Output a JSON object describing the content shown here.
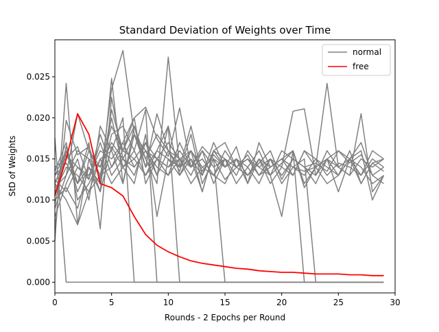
{
  "chart_data": {
    "type": "line",
    "title": "Standard Deviation of Weights over Time",
    "xlabel": "Rounds - 2 Epochs per Round",
    "ylabel": "StD of Weights",
    "xlim": [
      0,
      30
    ],
    "ylim": [
      -0.0013,
      0.0295
    ],
    "xticks": [
      0,
      5,
      10,
      15,
      20,
      25,
      30
    ],
    "xtick_labels": [
      "0",
      "5",
      "10",
      "15",
      "20",
      "25",
      "30"
    ],
    "yticks": [
      0.0,
      0.005,
      0.01,
      0.015,
      0.02,
      0.025
    ],
    "ytick_labels": [
      "0.000",
      "0.005",
      "0.010",
      "0.015",
      "0.020",
      "0.025"
    ],
    "grid": false,
    "legend": {
      "position": "top-right",
      "entries": [
        {
          "label": "normal",
          "color": "#808080"
        },
        {
          "label": "free",
          "color": "#ff0000"
        }
      ]
    },
    "x": [
      0,
      1,
      2,
      3,
      4,
      5,
      6,
      7,
      8,
      9,
      10,
      11,
      12,
      13,
      14,
      15,
      16,
      17,
      18,
      19,
      20,
      21,
      22,
      23,
      24,
      25,
      26,
      27,
      28,
      29
    ],
    "series": [
      {
        "color": "#808080",
        "values": [
          0.0175,
          0.0,
          0.0,
          0.0,
          0.0,
          0.0,
          0.0,
          0.0,
          0.0,
          0.0,
          0.0,
          0.0,
          0.0,
          0.0,
          0.0,
          0.0,
          0.0,
          0.0,
          0.0,
          0.0,
          0.0,
          0.0,
          0.0,
          0.0,
          0.0,
          0.0,
          0.0,
          0.0,
          0.0,
          0.0
        ]
      },
      {
        "color": "#808080",
        "values": [
          0.005,
          0.0242,
          0.007,
          0.015,
          0.011,
          0.0248,
          0.012,
          0.019,
          0.014,
          0.0205,
          0.016,
          0.0135,
          0.018,
          0.012,
          0.015,
          0.014,
          0.0165,
          0.012,
          0.015,
          0.013,
          0.0145,
          0.016,
          0.0115,
          0.014,
          0.015,
          0.013,
          0.016,
          0.012,
          0.0145,
          0.015
        ]
      },
      {
        "color": "#808080",
        "values": [
          0.0065,
          0.0197,
          0.0155,
          0.0165,
          0.0125,
          0.0235,
          0.0282,
          0.018,
          0.015,
          0.012,
          0.0274,
          0.014,
          0.016,
          0.0135,
          0.0155,
          0.014,
          0.015,
          0.013,
          0.0145,
          0.016,
          0.0125,
          0.015,
          0.014,
          0.0145,
          0.0135,
          0.016,
          0.0145,
          0.0155,
          0.013,
          0.014
        ]
      },
      {
        "color": "#808080",
        "values": [
          0.009,
          0.013,
          0.0205,
          0.016,
          0.014,
          0.019,
          0.016,
          0.02,
          0.0213,
          0.0175,
          0.0153,
          0.0212,
          0.014,
          0.0165,
          0.015,
          0.0125,
          0.014,
          0.0155,
          0.013,
          0.015,
          0.014,
          0.0208,
          0.0211,
          0.013,
          0.015,
          0.014,
          0.013,
          0.0205,
          0.011,
          0.013
        ]
      },
      {
        "color": "#808080",
        "values": [
          0.01,
          0.0115,
          0.009,
          0.014,
          0.012,
          0.021,
          0.016,
          0.019,
          0.015,
          0.018,
          0.016,
          0.014,
          0.019,
          0.013,
          0.017,
          0.014,
          0.015,
          0.012,
          0.017,
          0.014,
          0.015,
          0.013,
          0.016,
          0.014,
          0.0242,
          0.014,
          0.013,
          0.015,
          0.014,
          0.015
        ]
      },
      {
        "color": "#808080",
        "values": [
          0.012,
          0.01,
          0.007,
          0.011,
          0.013,
          0.02,
          0.014,
          0.015,
          0.017,
          0.013,
          0.016,
          0.015,
          0.012,
          0.014,
          0.013,
          0.016,
          0.014,
          0.015,
          0.014,
          0.013,
          0.016,
          0.015,
          0.014,
          0.012,
          0.015,
          0.016,
          0.015,
          0.017,
          0.013,
          0.012
        ]
      },
      {
        "color": "#808080",
        "values": [
          0.0135,
          0.017,
          0.01,
          0.012,
          0.015,
          0.016,
          0.012,
          0.018,
          0.014,
          0.016,
          0.019,
          0.013,
          0.015,
          0.011,
          0.016,
          0.017,
          0.014,
          0.013,
          0.015,
          0.012,
          0.014,
          0.013,
          0.016,
          0.015,
          0.013,
          0.0145,
          0.014,
          0.013,
          0.015,
          0.014
        ]
      },
      {
        "color": "#808080",
        "values": [
          0.014,
          0.015,
          0.0165,
          0.0125,
          0.018,
          0.014,
          0.017,
          0.02,
          0.012,
          0.015,
          0.013,
          0.017,
          0.014,
          0.016,
          0.012,
          0.015,
          0.014,
          0.015,
          0.013,
          0.014,
          0.015,
          0.014,
          0.013,
          0.015,
          0.014,
          0.013,
          0.015,
          0.014,
          0.012,
          0.013
        ]
      },
      {
        "color": "#808080",
        "values": [
          0.0105,
          0.0165,
          0.012,
          0.017,
          0.0065,
          0.0225,
          0.015,
          0.013,
          0.017,
          0.015,
          0.017,
          0.015,
          0.013,
          0.016,
          0.014,
          0.015,
          0.013,
          0.016,
          0.014,
          0.015,
          0.013,
          0.015,
          0.014,
          0.013,
          0.016,
          0.014,
          0.015,
          0.013,
          0.016,
          0.015
        ]
      },
      {
        "color": "#808080",
        "values": [
          0.011,
          0.014,
          0.013,
          0.011,
          0.015,
          0.012,
          0.014,
          0.016,
          0.013,
          0.015,
          0.014,
          0.016,
          0.014,
          0.015,
          0.013,
          0.012,
          0.015,
          0.014,
          0.012,
          0.015,
          0.012,
          0.014,
          0.0135,
          0.014,
          0.012,
          0.013,
          0.015,
          0.012,
          0.0145,
          0.0135
        ]
      },
      {
        "color": "#808080",
        "values": [
          0.008,
          0.012,
          0.015,
          0.01,
          0.019,
          0.016,
          0.02,
          0.0,
          0.0,
          0.0,
          0.0,
          0.0,
          0.0,
          0.0,
          0.0,
          0.0,
          0.0,
          0.0,
          0.0,
          0.0,
          0.0,
          0.0,
          0.0,
          0.0,
          0.0,
          0.0,
          0.0,
          0.0,
          0.0,
          0.0
        ]
      },
      {
        "color": "#808080",
        "values": [
          0.0095,
          0.016,
          0.011,
          0.014,
          0.012,
          0.018,
          0.019,
          0.016,
          0.021,
          0.0,
          0.0,
          0.0,
          0.0,
          0.0,
          0.0,
          0.0,
          0.0,
          0.0,
          0.0,
          0.0,
          0.0,
          0.0,
          0.0,
          0.0,
          0.0,
          0.0,
          0.0,
          0.0,
          0.0,
          0.0
        ]
      },
      {
        "color": "#808080",
        "values": [
          0.0115,
          0.013,
          0.016,
          0.015,
          0.014,
          0.017,
          0.015,
          0.018,
          0.016,
          0.013,
          0.019,
          0.0,
          0.0,
          0.0,
          0.0,
          0.0,
          0.0,
          0.0,
          0.0,
          0.0,
          0.0,
          0.0,
          0.0,
          0.0,
          0.0,
          0.0,
          0.0,
          0.0,
          0.0,
          0.0
        ]
      },
      {
        "color": "#808080",
        "values": [
          0.0125,
          0.011,
          0.014,
          0.013,
          0.016,
          0.015,
          0.017,
          0.014,
          0.016,
          0.015,
          0.014,
          0.015,
          0.016,
          0.014,
          0.015,
          0.0,
          0.0,
          0.0,
          0.0,
          0.0,
          0.0,
          0.0,
          0.0,
          0.0,
          0.0,
          0.0,
          0.0,
          0.0,
          0.0,
          0.0
        ]
      },
      {
        "color": "#808080",
        "values": [
          0.013,
          0.0145,
          0.012,
          0.016,
          0.013,
          0.014,
          0.016,
          0.015,
          0.013,
          0.016,
          0.015,
          0.014,
          0.015,
          0.013,
          0.016,
          0.014,
          0.015,
          0.013,
          0.015,
          0.014,
          0.015,
          0.016,
          0.0,
          0.0,
          0.0,
          0.0,
          0.0,
          0.0,
          0.0,
          0.0
        ]
      },
      {
        "color": "#808080",
        "values": [
          0.012,
          0.0155,
          0.014,
          0.0125,
          0.017,
          0.013,
          0.015,
          0.014,
          0.016,
          0.014,
          0.013,
          0.015,
          0.014,
          0.015,
          0.013,
          0.015,
          0.014,
          0.015,
          0.013,
          0.014,
          0.015,
          0.014,
          0.015,
          0.0,
          0.0,
          0.0,
          0.0,
          0.0,
          0.0,
          0.0
        ]
      },
      {
        "color": "#808080",
        "values": [
          0.013,
          0.016,
          0.012,
          0.014,
          0.011,
          0.0165,
          0.014,
          0.012,
          0.018,
          0.008,
          0.015,
          0.013,
          0.016,
          0.011,
          0.016,
          0.015,
          0.012,
          0.014,
          0.016,
          0.013,
          0.008,
          0.016,
          0.012,
          0.014,
          0.015,
          0.011,
          0.015,
          0.016,
          0.01,
          0.013
        ]
      },
      {
        "color": "#ff0000",
        "values": [
          0.0105,
          0.015,
          0.0205,
          0.018,
          0.012,
          0.0115,
          0.0105,
          0.008,
          0.0058,
          0.0045,
          0.0037,
          0.0031,
          0.0026,
          0.0023,
          0.0021,
          0.0019,
          0.0017,
          0.0016,
          0.0014,
          0.0013,
          0.0012,
          0.0012,
          0.0011,
          0.001,
          0.001,
          0.001,
          0.0009,
          0.0009,
          0.0008,
          0.0008
        ]
      }
    ]
  }
}
